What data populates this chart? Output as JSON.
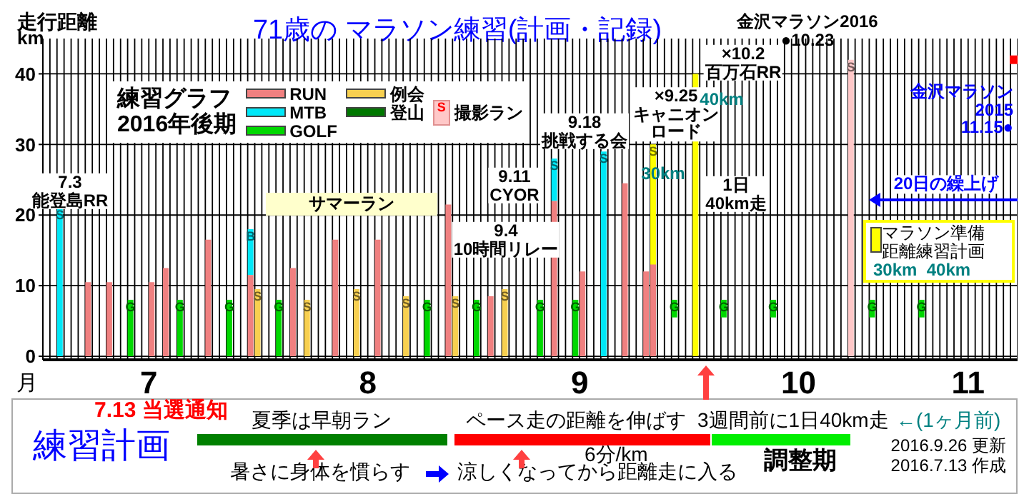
{
  "chart_data": {
    "type": "bar",
    "title": "71歳の マラソン練習(計画・記録)",
    "ylabel": "走行距離",
    "xlabel": "月",
    "legend_title": "練習グラフ\n2016年後期",
    "grid": true,
    "legend": "top left",
    "marker": "square",
    "xlim": [
      "2016-07-01",
      "2016-11-16"
    ],
    "xticks": [
      {
        "value": "2016-07-16",
        "label": "7"
      },
      {
        "value": "2016-08-16",
        "label": "8"
      },
      {
        "value": "2016-09-15",
        "label": "9"
      },
      {
        "value": "2016-10-16",
        "label": "10"
      },
      {
        "value": "2016-11-09",
        "label": "11"
      }
    ],
    "ylim": [
      -0.5,
      45
    ],
    "yticks": [
      0,
      10,
      20,
      30,
      40
    ],
    "series": [
      {
        "name": "RUN",
        "color": "#f08080",
        "x": [
          "2016-07-07",
          "2016-07-10",
          "2016-07-16",
          "2016-07-18",
          "2016-07-24",
          "2016-07-30",
          "2016-08-05",
          "2016-08-11",
          "2016-08-17",
          "2016-08-27",
          "2016-09-02",
          "2016-09-11",
          "2016-09-15",
          "2016-09-21",
          "2016-09-24",
          "2016-09-25"
        ],
        "values": [
          10.5,
          10.5,
          10.5,
          12.5,
          16.5,
          11.5,
          12.5,
          16.5,
          16.5,
          21.5,
          8.5,
          22,
          12,
          24.5,
          12,
          13
        ]
      },
      {
        "name": "MTB",
        "color": "#00e8f8",
        "x": [
          "2016-07-03",
          "2016-07-30",
          "2016-09-11",
          "2016-09-18"
        ],
        "values": [
          21,
          6.5,
          6,
          29
        ],
        "base": [
          0,
          11.5,
          22,
          0
        ],
        "value_labels": [
          "S",
          "B",
          "S",
          "S"
        ]
      },
      {
        "name": "GOLF",
        "color": "#00d800",
        "x": [
          "2016-07-13",
          "2016-07-20",
          "2016-07-27",
          "2016-08-03",
          "2016-08-24",
          "2016-08-31",
          "2016-09-09",
          "2016-09-14",
          "2016-09-28",
          "2016-10-05",
          "2016-10-12",
          "2016-10-26",
          "2016-11-02"
        ],
        "values": [
          8,
          8,
          8,
          8,
          8,
          8,
          8,
          8,
          2.5,
          2.5,
          2.5,
          2.5,
          2.5
        ],
        "base": [
          0,
          0,
          0,
          0,
          0,
          0,
          0,
          0,
          5.5,
          5.5,
          5.5,
          5.5,
          5.5
        ],
        "value_labels": [
          "G",
          "G",
          "G",
          "G",
          "G",
          "G",
          "G",
          "G",
          "G",
          "G",
          "G",
          "G",
          "G"
        ]
      },
      {
        "name": "例会",
        "color": "#f8d050",
        "x": [
          "2016-07-31",
          "2016-08-07",
          "2016-08-14",
          "2016-08-21",
          "2016-08-28",
          "2016-09-04"
        ],
        "values": [
          9.5,
          8,
          9.5,
          8.5,
          8.5,
          9.5
        ],
        "value_labels": [
          "S",
          "S",
          "S",
          "S",
          "S",
          "S"
        ]
      },
      {
        "name": "登山",
        "color": "#007800"
      },
      {
        "name": "撮影ラン",
        "color": "#ffc8c8",
        "x": [
          "2016-10-23"
        ],
        "values": [
          42
        ],
        "value_labels": [
          "S"
        ]
      },
      {
        "type": "scatter",
        "color": "#ff0000",
        "x": [
          "2016-11-15"
        ],
        "values": [
          42
        ]
      },
      {
        "color": "#ffff00",
        "x": [
          "2016-09-25",
          "2016-10-01"
        ],
        "values": [
          30,
          40
        ],
        "base": [
          0,
          0
        ],
        "value_labels": [
          "S",
          null
        ]
      }
    ],
    "annotations": [
      "km",
      "金沢マラソン2016\n●10.23",
      "7.3\n能登島RR",
      "サマーラン",
      "9.4\n10時間リレー",
      "9.11\nCYOR",
      "9.18\n挑戦する会",
      "×9.25\nキャニオンロード",
      "30km",
      "×10.2\n百万石RR",
      "40km",
      "1日\n40km走",
      "金沢マラソン\n2015\n11.15●",
      "20日の繰上げ",
      "30km  40km",
      "練習計画",
      "7.13 当選通知",
      "暑さに身体を慣らす",
      "涼しくなってから距離走に入る",
      "6分/km",
      "3週間前に1日40km走",
      "←(1ヶ月前)",
      "2016.9.26 更新",
      "2016.7.13 作成",
      "夏季は早朝ラン",
      "ペース走の距離を伸ばす",
      "調整期",
      "マラソン準備距離練習計画"
    ]
  }
}
